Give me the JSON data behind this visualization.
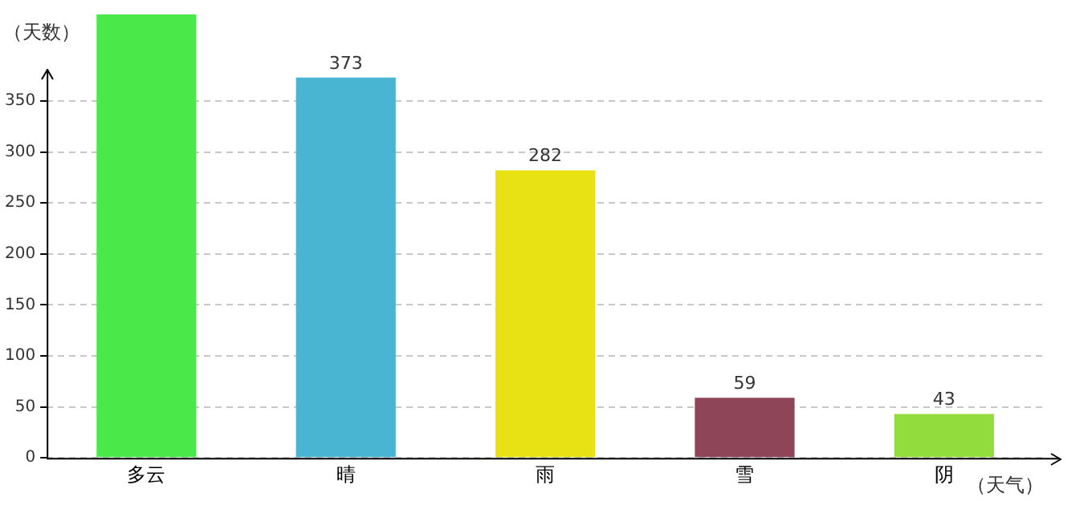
{
  "chart_data": {
    "type": "bar",
    "xlabel": "（天气）",
    "ylabel": "（天数）",
    "categories": [
      "多云",
      "晴",
      "雨",
      "雪",
      "阴"
    ],
    "values": [
      435,
      373,
      282,
      59,
      43
    ],
    "colors": [
      "#4be84a",
      "#4ab4d3",
      "#e8e113",
      "#8e4558",
      "#92dd3d"
    ],
    "value_labels": [
      null,
      "373",
      "282",
      "59",
      "43"
    ],
    "ylim": [
      0,
      435
    ],
    "yticks": [
      0,
      50,
      100,
      150,
      200,
      250,
      300,
      350
    ],
    "grid": "y",
    "legend": false
  }
}
